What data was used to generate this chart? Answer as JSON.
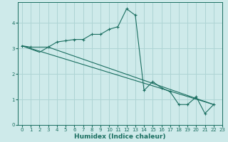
{
  "xlabel": "Humidex (Indice chaleur)",
  "bg_color": "#ceeaea",
  "grid_color": "#aed4d4",
  "line_color": "#1a6e60",
  "xlim": [
    -0.5,
    23
  ],
  "ylim": [
    0,
    4.8
  ],
  "xtick_labels": [
    "0",
    "1",
    "2",
    "3",
    "4",
    "5",
    "6",
    "7",
    "8",
    "9",
    "10",
    "11",
    "12",
    "13",
    "14",
    "15",
    "16",
    "17",
    "18",
    "19",
    "20",
    "21",
    "22",
    "23"
  ],
  "xticks": [
    0,
    1,
    2,
    3,
    4,
    5,
    6,
    7,
    8,
    9,
    10,
    11,
    12,
    13,
    14,
    15,
    16,
    17,
    18,
    19,
    20,
    21,
    22,
    23
  ],
  "yticks": [
    0,
    1,
    2,
    3,
    4
  ],
  "main_series": {
    "x": [
      0,
      1,
      3,
      4,
      5,
      6,
      7,
      8,
      9,
      10,
      11,
      12,
      13,
      14,
      15,
      16,
      17,
      18,
      19,
      20,
      21,
      22
    ],
    "y": [
      3.1,
      3.05,
      3.05,
      3.25,
      3.3,
      3.35,
      3.35,
      3.55,
      3.55,
      3.75,
      3.85,
      4.55,
      4.3,
      1.35,
      1.7,
      1.45,
      1.3,
      0.8,
      0.8,
      1.1,
      0.45,
      0.8
    ]
  },
  "line1": {
    "x": [
      0,
      2,
      3
    ],
    "y": [
      3.1,
      2.85,
      3.05
    ]
  },
  "line2": {
    "x": [
      3,
      22
    ],
    "y": [
      3.05,
      0.8
    ]
  },
  "line3": {
    "x": [
      0,
      22
    ],
    "y": [
      3.1,
      0.8
    ]
  }
}
